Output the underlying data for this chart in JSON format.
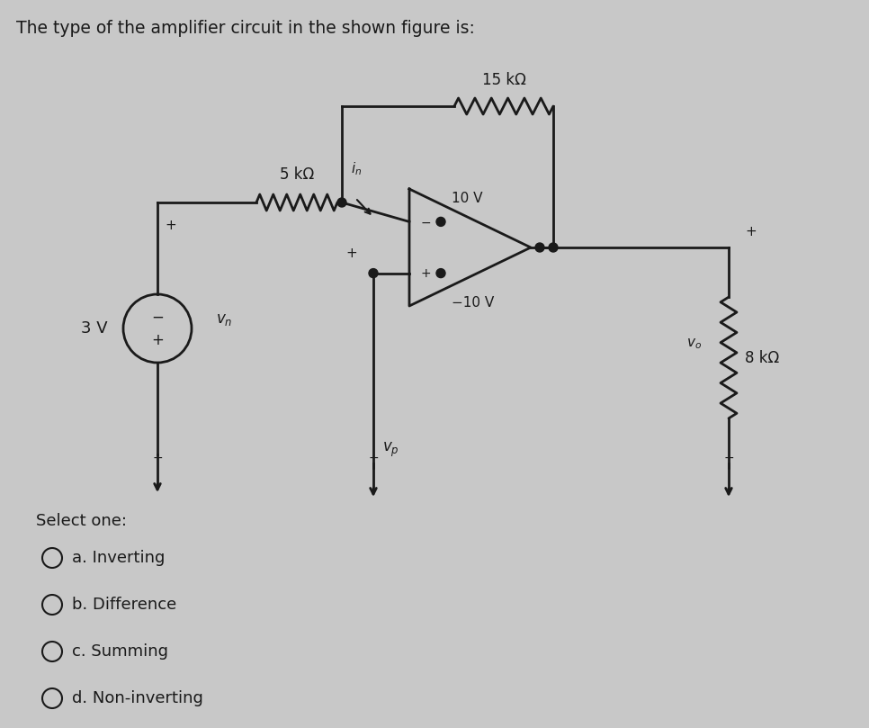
{
  "title": "The type of the amplifier circuit in the shown figure is:",
  "background_color": "#c8c8c8",
  "text_color": "#1a1a1a",
  "line_color": "#1a1a1a",
  "options": [
    "a. Inverting",
    "b. Difference",
    "c. Summing",
    "d. Non-inverting"
  ],
  "select_one_text": "Select one:",
  "res15k_label": "15 kΩ",
  "res5k_label": "5 kΩ",
  "res8k_label": "8 kΩ",
  "v3_label": "3 V",
  "v10_label": "10 V",
  "vneg10_label": "−10 V",
  "in_label": "i_n",
  "vn_label": "v_n",
  "vp_label": "v_p",
  "vo_label": "v_o",
  "plus": "+",
  "minus": "−"
}
